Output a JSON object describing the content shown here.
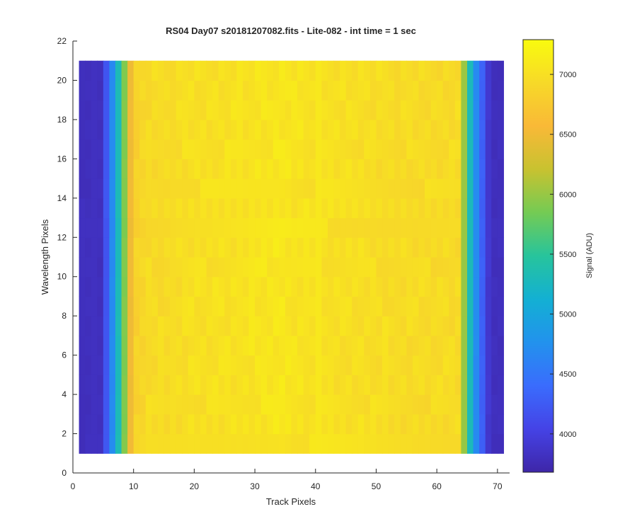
{
  "chart_data": {
    "type": "heatmap",
    "title": "RS04 Day07  s20181207082.fits - Lite-082 - int time = 1 sec",
    "xlabel": "Track Pixels",
    "ylabel": "Wavelength Pixels",
    "xlim": [
      0,
      72
    ],
    "ylim": [
      0,
      22
    ],
    "xticks": [
      "0",
      "10",
      "20",
      "30",
      "40",
      "50",
      "60",
      "70"
    ],
    "yticks": [
      "0",
      "2",
      "4",
      "6",
      "8",
      "10",
      "12",
      "14",
      "16",
      "18",
      "20",
      "22"
    ],
    "colorbar": {
      "label": "Signal (ADU)",
      "range": [
        3680,
        7290
      ],
      "ticks": [
        "4000",
        "4500",
        "5000",
        "5500",
        "6000",
        "6500",
        "7000"
      ],
      "colormap": "parula"
    },
    "grid_size": {
      "columns": 70,
      "rows": 20,
      "x_start": 1,
      "y_start": 1
    },
    "column_profile": [
      3800,
      3800,
      3800,
      3800,
      4200,
      4700,
      5300,
      5900,
      6500,
      6850,
      6900,
      6950,
      6950,
      6950,
      6950,
      6980,
      6980,
      6990,
      7000,
      7000,
      7000,
      7000,
      7010,
      7010,
      7020,
      7020,
      7030,
      7030,
      7040,
      7050,
      7050,
      7060,
      7070,
      7080,
      7060,
      7040,
      7040,
      7030,
      7020,
      7020,
      7010,
      7010,
      7000,
      7000,
      7000,
      6990,
      6990,
      6980,
      6980,
      6970,
      6970,
      6960,
      6960,
      6960,
      6960,
      6950,
      6950,
      6950,
      6950,
      6950,
      6950,
      6950,
      6950,
      6000,
      5300,
      4700,
      4300,
      3900,
      3800,
      3800
    ]
  }
}
